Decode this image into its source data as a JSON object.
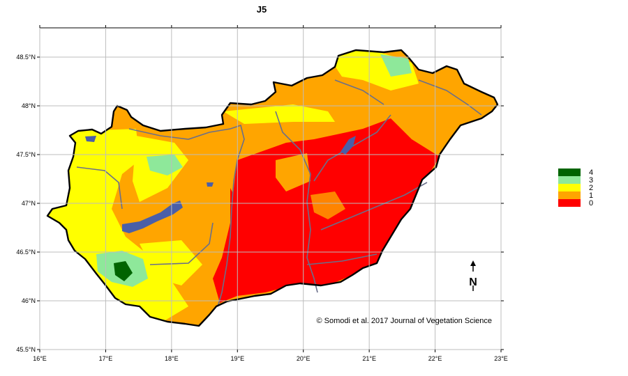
{
  "title": "J5",
  "axes": {
    "x_ticks": [
      "16°E",
      "17°E",
      "18°E",
      "19°E",
      "20°E",
      "21°E",
      "22°E",
      "23°E"
    ],
    "y_ticks": [
      "48.5°N",
      "48°N",
      "47.5°N",
      "47°N",
      "46.5°N",
      "46°N",
      "45.5°N"
    ],
    "x_values": [
      16,
      17,
      18,
      19,
      20,
      21,
      22,
      23
    ],
    "y_values": [
      48.5,
      48,
      47.5,
      47,
      46.5,
      46,
      45.5
    ],
    "x_range": [
      16,
      23
    ],
    "y_range": [
      45.5,
      48.8
    ],
    "grid": true
  },
  "legend": {
    "placement": "right",
    "items": [
      {
        "label": "4",
        "color": "#006400"
      },
      {
        "label": "3",
        "color": "#8ee89a"
      },
      {
        "label": "2",
        "color": "#ffff00"
      },
      {
        "label": "1",
        "color": "#ffa500"
      },
      {
        "label": "0",
        "color": "#ff0000"
      }
    ]
  },
  "credit": "© Somodi et al. 2017 Journal of Vegetation Science",
  "north_arrow": {
    "label": "N",
    "icon": "north-arrow-icon"
  },
  "colors": {
    "water": "#4a5fa8",
    "border": "#000000",
    "river": "#6a6f8a",
    "grid": "#bdbdbd"
  }
}
